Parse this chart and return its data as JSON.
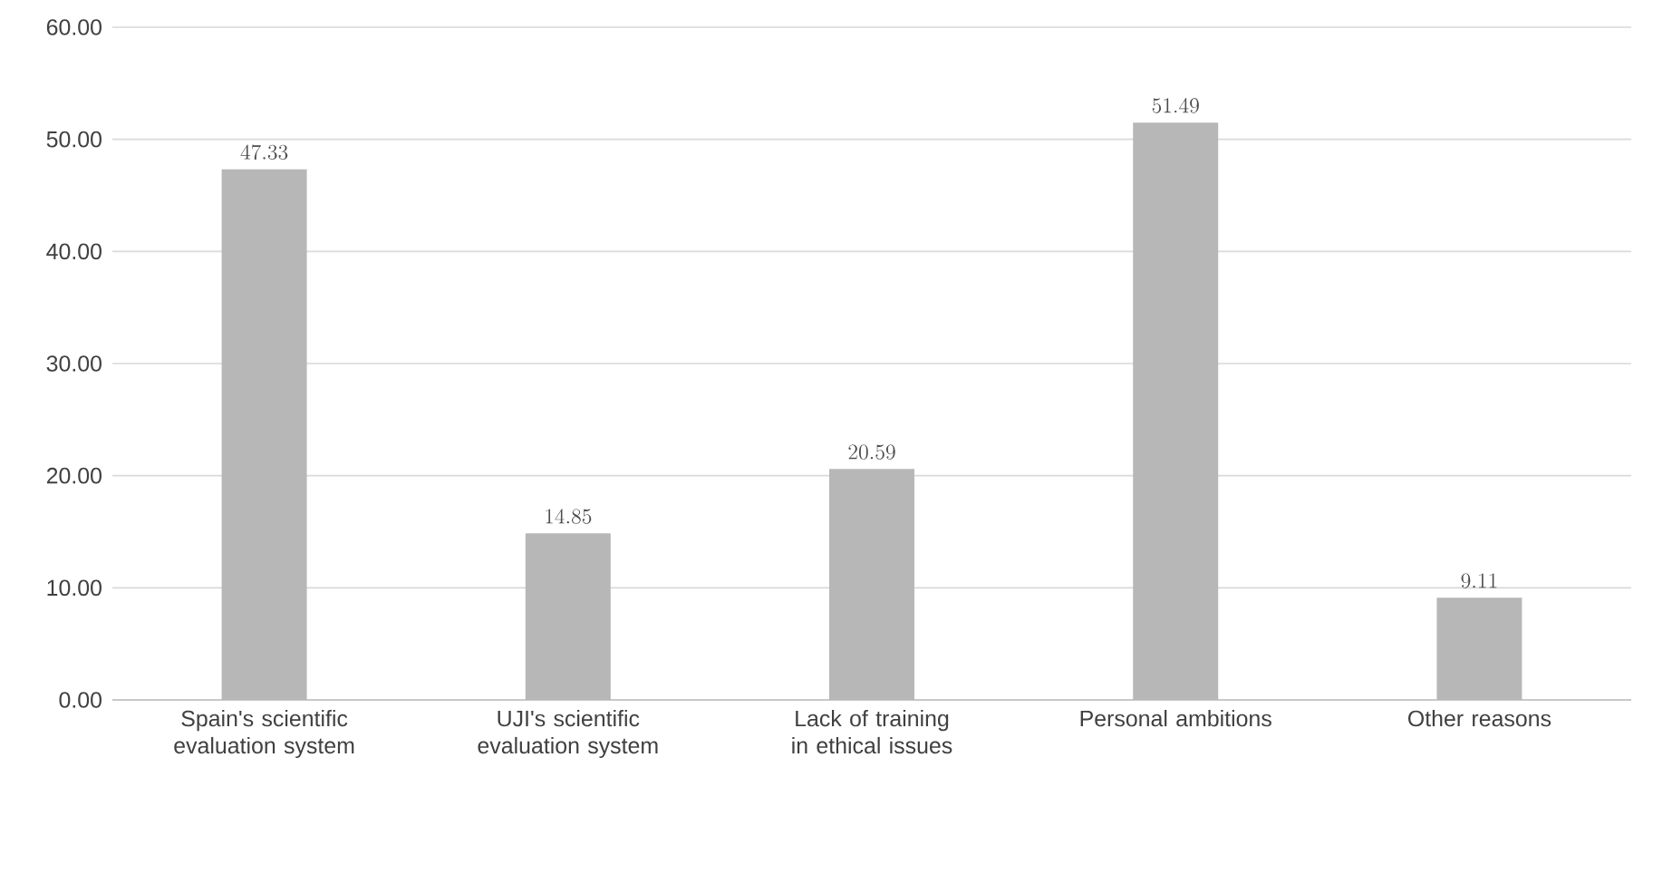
{
  "chart_data": {
    "type": "bar",
    "categories": [
      "Spain's scientific evaluation system",
      "UJI's scientific evaluation system",
      "Lack of training in ethical issues",
      "Personal ambitions",
      "Other reasons"
    ],
    "values": [
      47.33,
      14.85,
      20.59,
      51.49,
      9.11
    ],
    "color": "#b7b7b7",
    "ylim": [
      0,
      60
    ],
    "yticks": [
      {
        "value": 0,
        "label": "0.00"
      },
      {
        "value": 10,
        "label": "10.00"
      },
      {
        "value": 20,
        "label": "20.00"
      },
      {
        "value": 30,
        "label": "30.00"
      },
      {
        "value": 40,
        "label": "40.00"
      },
      {
        "value": 50,
        "label": "50.00"
      },
      {
        "value": 60,
        "label": "60.00"
      }
    ],
    "grid": "y",
    "data_labels": true
  }
}
